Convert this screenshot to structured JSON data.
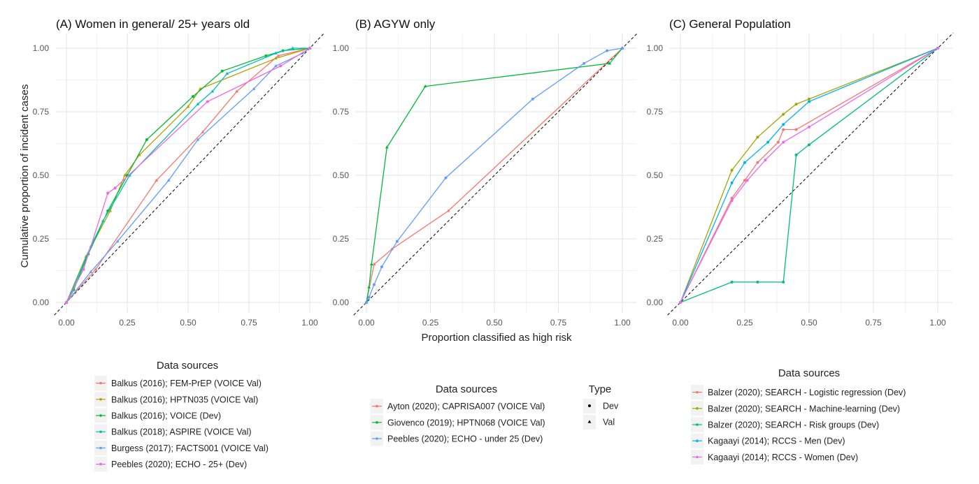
{
  "figure": {
    "shared_xlabel": "Proportion classified as high risk",
    "shared_ylabel": "Cumulative proportion of incident cases",
    "legend_title": "Data sources",
    "type_legend": {
      "title": "Type",
      "items": [
        {
          "label": "Dev",
          "marker": "circle"
        },
        {
          "label": "Val",
          "marker": "triangle"
        }
      ]
    },
    "tick_labels": [
      "0.00",
      "0.25",
      "0.50",
      "0.75",
      "1.00"
    ],
    "grid": true,
    "reference_line": "diagonal dashed y = x"
  },
  "chart_data": [
    {
      "type": "line",
      "title": "(A) Women in general/ 25+ years old",
      "xlabel": "",
      "ylabel": "Cumulative proportion of incident cases",
      "xlim": [
        0,
        1
      ],
      "ylim": [
        0,
        1
      ],
      "legend_title": "Data sources",
      "series": [
        {
          "name": "Balkus (2016); FEM-PrEP (VOICE Val)",
          "color": "#F8766D",
          "type": "Val",
          "points": [
            [
              0,
              0
            ],
            [
              0.12,
              0.13
            ],
            [
              0.37,
              0.48
            ],
            [
              0.56,
              0.67
            ],
            [
              0.7,
              0.83
            ],
            [
              0.87,
              0.97
            ],
            [
              1,
              1
            ]
          ]
        },
        {
          "name": "Balkus (2016); HPTN035 (VOICE Val)",
          "color": "#B79F00",
          "type": "Val",
          "points": [
            [
              0,
              0
            ],
            [
              0.08,
              0.18
            ],
            [
              0.18,
              0.36
            ],
            [
              0.24,
              0.5
            ],
            [
              0.3,
              0.58
            ],
            [
              0.5,
              0.77
            ],
            [
              0.55,
              0.84
            ],
            [
              0.86,
              0.96
            ],
            [
              1,
              1
            ]
          ]
        },
        {
          "name": "Balkus (2016); VOICE (Dev)",
          "color": "#00BA38",
          "type": "Dev",
          "points": [
            [
              0,
              0
            ],
            [
              0.03,
              0.05
            ],
            [
              0.09,
              0.19
            ],
            [
              0.17,
              0.36
            ],
            [
              0.25,
              0.5
            ],
            [
              0.33,
              0.64
            ],
            [
              0.52,
              0.81
            ],
            [
              0.64,
              0.91
            ],
            [
              0.82,
              0.97
            ],
            [
              0.89,
              0.99
            ],
            [
              1,
              1
            ]
          ]
        },
        {
          "name": "Balkus (2018); ASPIRE (VOICE Val)",
          "color": "#00BFC4",
          "type": "Val",
          "points": [
            [
              0,
              0
            ],
            [
              0.02,
              0.04
            ],
            [
              0.1,
              0.22
            ],
            [
              0.15,
              0.32
            ],
            [
              0.26,
              0.5
            ],
            [
              0.54,
              0.78
            ],
            [
              0.6,
              0.83
            ],
            [
              0.66,
              0.9
            ],
            [
              0.86,
              0.98
            ],
            [
              0.93,
              1.0
            ],
            [
              1,
              1
            ]
          ]
        },
        {
          "name": "Burgess (2017); FACTS001 (VOICE Val)",
          "color": "#619CFF",
          "type": "Val",
          "points": [
            [
              0,
              0
            ],
            [
              0.1,
              0.12
            ],
            [
              0.21,
              0.24
            ],
            [
              0.42,
              0.48
            ],
            [
              0.54,
              0.64
            ],
            [
              0.77,
              0.84
            ],
            [
              0.86,
              0.93
            ],
            [
              0.97,
              0.98
            ],
            [
              1,
              1
            ]
          ]
        },
        {
          "name": "Peebles (2020); ECHO - 25+ (Dev)",
          "color": "#F564E3",
          "type": "Dev",
          "points": [
            [
              0,
              0
            ],
            [
              0.07,
              0.13
            ],
            [
              0.17,
              0.43
            ],
            [
              0.2,
              0.45
            ],
            [
              0.58,
              0.79
            ],
            [
              0.88,
              0.93
            ],
            [
              1,
              1
            ]
          ]
        }
      ]
    },
    {
      "type": "line",
      "title": "(B) AGYW only",
      "xlabel": "Proportion classified as high risk",
      "ylabel": "",
      "xlim": [
        0,
        1
      ],
      "ylim": [
        0,
        1
      ],
      "legend_title": "Data sources",
      "series": [
        {
          "name": "Ayton (2020); CAPRISA007 (VOICE Val)",
          "color": "#F8766D",
          "type": "Val",
          "points": [
            [
              0,
              0
            ],
            [
              0.03,
              0.15
            ],
            [
              0.1,
              0.21
            ],
            [
              0.32,
              0.36
            ],
            [
              1,
              1
            ]
          ]
        },
        {
          "name": "Giovenco (2019); HPTN068 (VOICE Val)",
          "color": "#00BA38",
          "type": "Val",
          "points": [
            [
              0,
              0
            ],
            [
              0.01,
              0.06
            ],
            [
              0.02,
              0.15
            ],
            [
              0.08,
              0.61
            ],
            [
              0.23,
              0.85
            ],
            [
              0.95,
              0.94
            ],
            [
              1,
              1
            ]
          ]
        },
        {
          "name": "Peebles (2020); ECHO - under 25 (Dev)",
          "color": "#619CFF",
          "type": "Dev",
          "points": [
            [
              0,
              0
            ],
            [
              0.01,
              0.02
            ],
            [
              0.03,
              0.07
            ],
            [
              0.06,
              0.14
            ],
            [
              0.12,
              0.24
            ],
            [
              0.31,
              0.49
            ],
            [
              0.65,
              0.8
            ],
            [
              0.85,
              0.94
            ],
            [
              0.94,
              0.99
            ],
            [
              1,
              1
            ]
          ]
        }
      ]
    },
    {
      "type": "line",
      "title": "(C) General Population",
      "xlabel": "",
      "ylabel": "",
      "xlim": [
        0,
        1
      ],
      "ylim": [
        0,
        1
      ],
      "legend_title": "Data sources",
      "series": [
        {
          "name": "Balzer (2020); SEARCH - Logistic regression (Dev)",
          "color": "#F8766D",
          "type": "Dev",
          "points": [
            [
              0,
              0
            ],
            [
              0.2,
              0.41
            ],
            [
              0.25,
              0.48
            ],
            [
              0.3,
              0.55
            ],
            [
              0.38,
              0.63
            ],
            [
              0.4,
              0.68
            ],
            [
              0.45,
              0.68
            ],
            [
              1,
              1
            ]
          ]
        },
        {
          "name": "Balzer (2020); SEARCH - Machine-learning (Dev)",
          "color": "#A3A500",
          "type": "Dev",
          "points": [
            [
              0,
              0
            ],
            [
              0.2,
              0.52
            ],
            [
              0.3,
              0.65
            ],
            [
              0.4,
              0.74
            ],
            [
              0.45,
              0.78
            ],
            [
              0.5,
              0.8
            ],
            [
              1,
              1
            ]
          ]
        },
        {
          "name": "Balzer (2020); SEARCH - Risk groups (Dev)",
          "color": "#00BF7D",
          "type": "Dev",
          "points": [
            [
              0,
              0
            ],
            [
              0.2,
              0.08
            ],
            [
              0.3,
              0.08
            ],
            [
              0.4,
              0.08
            ],
            [
              0.45,
              0.58
            ],
            [
              0.5,
              0.62
            ],
            [
              1,
              1
            ]
          ]
        },
        {
          "name": "Kagaayi (2014); RCCS - Men (Dev)",
          "color": "#00B0F6",
          "type": "Dev",
          "points": [
            [
              0,
              0
            ],
            [
              0.2,
              0.47
            ],
            [
              0.25,
              0.55
            ],
            [
              0.34,
              0.63
            ],
            [
              0.4,
              0.7
            ],
            [
              0.5,
              0.79
            ],
            [
              1,
              1
            ]
          ]
        },
        {
          "name": "Kagaayi (2014); RCCS - Women (Dev)",
          "color": "#E76BF3",
          "type": "Dev",
          "points": [
            [
              0,
              0
            ],
            [
              0.2,
              0.4
            ],
            [
              0.26,
              0.48
            ],
            [
              0.33,
              0.56
            ],
            [
              0.4,
              0.63
            ],
            [
              0.5,
              0.69
            ],
            [
              1,
              1
            ]
          ]
        }
      ]
    }
  ]
}
